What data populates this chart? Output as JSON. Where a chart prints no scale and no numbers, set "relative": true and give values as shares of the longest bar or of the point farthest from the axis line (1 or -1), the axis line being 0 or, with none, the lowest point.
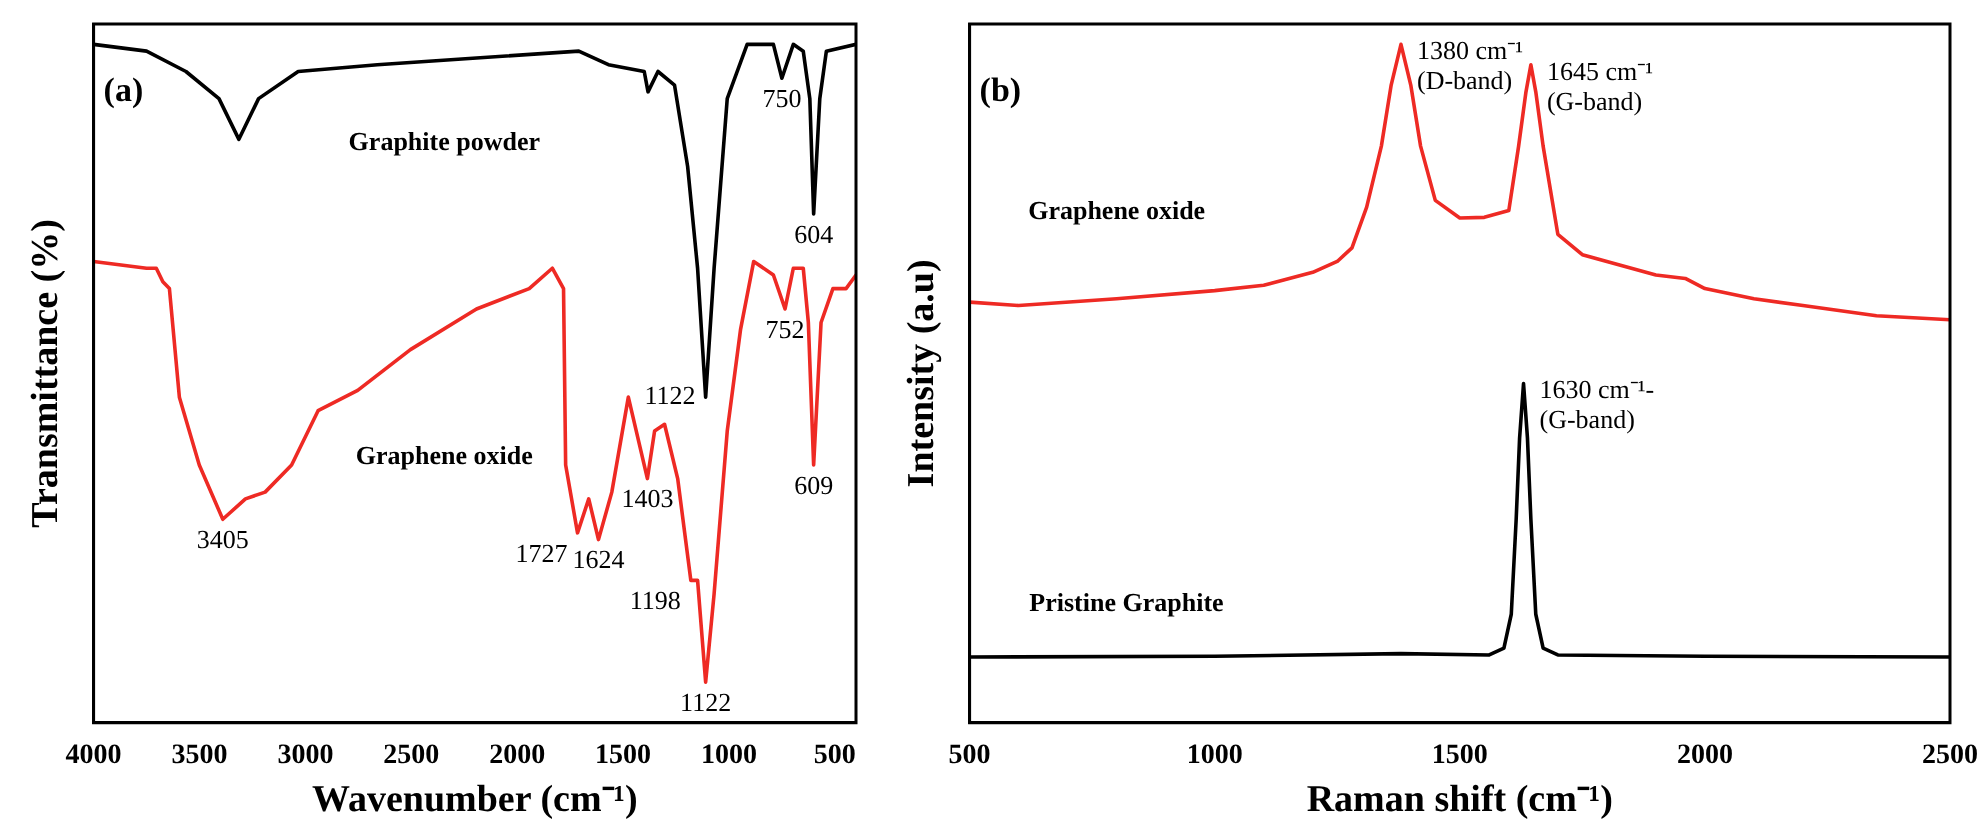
{
  "chart_data": [
    {
      "type": "line",
      "relative": true,
      "xlabel": "Wavenumber (cm⁻¹)",
      "ylabel": "Transmittance (%)",
      "xlim": [
        4000,
        400
      ],
      "xticks": [
        4000,
        3500,
        3000,
        2500,
        2000,
        1500,
        1000,
        500
      ],
      "grid": false,
      "legend": false,
      "marker": "none",
      "line_style": "solid",
      "annotations": [
        "(a)",
        {
          "text": "750",
          "x": 750,
          "y": 0.95
        },
        {
          "text": "604",
          "x": 600,
          "y": 0.75
        },
        {
          "text": "1122",
          "x": 1110,
          "y": 0.48
        },
        {
          "text": "3405",
          "x": 3390,
          "y": 0.3
        },
        {
          "text": "1727",
          "x": 1715,
          "y": 0.28
        },
        {
          "text": "1624",
          "x": 1616,
          "y": 0.27
        },
        {
          "text": "1403",
          "x": 1385,
          "y": 0.36
        },
        {
          "text": "1198",
          "x": 1180,
          "y": 0.21
        },
        {
          "text": "1122",
          "x": 1110,
          "y": 0.06
        },
        {
          "text": "752",
          "x": 735,
          "y": 0.61
        },
        {
          "text": "609",
          "x": 600,
          "y": 0.38
        }
      ],
      "series": [
        {
          "name": "Graphite powder",
          "color": "#000000",
          "x": [
            4000,
            3750,
            3564,
            3408,
            3314,
            3221,
            3034,
            2660,
            2192,
            1709,
            1569,
            1400,
            1382,
            1335,
            1257,
            1195,
            1148,
            1110,
            1070,
            1008,
            914,
            790,
            750,
            696,
            649,
            618,
            600,
            571,
            540,
            400
          ],
          "values": [
            1.0,
            0.99,
            0.96,
            0.92,
            0.86,
            0.92,
            0.96,
            0.97,
            0.98,
            0.99,
            0.97,
            0.96,
            0.93,
            0.96,
            0.94,
            0.82,
            0.67,
            0.48,
            0.67,
            0.92,
            1.0,
            1.0,
            0.95,
            1.0,
            0.99,
            0.92,
            0.75,
            0.92,
            0.99,
            1.0
          ]
        },
        {
          "name": "Graphene oxide",
          "color": "#ee2a24",
          "x": [
            4000,
            3750,
            3704,
            3673,
            3642,
            3595,
            3501,
            3390,
            3283,
            3190,
            3065,
            2940,
            2753,
            2504,
            2192,
            1943,
            1834,
            1781,
            1771,
            1715,
            1662,
            1616,
            1553,
            1475,
            1385,
            1351,
            1304,
            1242,
            1180,
            1148,
            1110,
            1070,
            1008,
            945,
            883,
            790,
            735,
            696,
            649,
            625,
            600,
            565,
            509,
            447,
            400
          ],
          "values": [
            0.68,
            0.67,
            0.67,
            0.65,
            0.64,
            0.48,
            0.38,
            0.3,
            0.33,
            0.34,
            0.38,
            0.46,
            0.49,
            0.55,
            0.61,
            0.64,
            0.67,
            0.64,
            0.38,
            0.28,
            0.33,
            0.27,
            0.34,
            0.48,
            0.36,
            0.43,
            0.44,
            0.36,
            0.21,
            0.21,
            0.06,
            0.19,
            0.43,
            0.58,
            0.68,
            0.66,
            0.61,
            0.67,
            0.67,
            0.59,
            0.38,
            0.59,
            0.64,
            0.64,
            0.66
          ]
        }
      ]
    },
    {
      "type": "line",
      "relative": true,
      "xlabel": "Raman shift (cm⁻¹)",
      "ylabel": "Intensity (a.u)",
      "xlim": [
        500,
        2500
      ],
      "xticks": [
        500,
        1000,
        1500,
        2000,
        2500
      ],
      "grid": false,
      "legend": false,
      "marker": "none",
      "line_style": "solid",
      "annotations": [
        "(b)",
        {
          "text": "1380 cm⁻¹\n(D-band)",
          "x": 1380,
          "y": 1.0
        },
        {
          "text": "1645 cm⁻¹\n(G-band)",
          "x": 1645,
          "y": 0.97
        },
        {
          "text": "1630 cm⁻¹-\n(G-band)",
          "x": 1630,
          "y": 0.5
        }
      ],
      "series": [
        {
          "name": "Graphene oxide",
          "color": "#ee2a24",
          "x": [
            500,
            600,
            800,
            1000,
            1100,
            1200,
            1250,
            1280,
            1310,
            1340,
            1360,
            1380,
            1400,
            1420,
            1450,
            1500,
            1550,
            1600,
            1620,
            1635,
            1645,
            1655,
            1670,
            1700,
            1750,
            1800,
            1900,
            1960,
            2000,
            2100,
            2200,
            2350,
            2500
          ],
          "values": [
            0.62,
            0.615,
            0.625,
            0.637,
            0.645,
            0.664,
            0.68,
            0.7,
            0.76,
            0.85,
            0.94,
            1.0,
            0.94,
            0.85,
            0.77,
            0.744,
            0.745,
            0.755,
            0.85,
            0.93,
            0.97,
            0.93,
            0.85,
            0.72,
            0.69,
            0.68,
            0.66,
            0.655,
            0.64,
            0.625,
            0.615,
            0.6,
            0.594
          ]
        },
        {
          "name": "Pristine Graphite",
          "color": "#000000",
          "x": [
            500,
            1000,
            1380,
            1560,
            1590,
            1605,
            1615,
            1622,
            1630,
            1638,
            1645,
            1655,
            1670,
            1700,
            2000,
            2500
          ],
          "values": [
            0.097,
            0.098,
            0.102,
            0.1,
            0.11,
            0.16,
            0.3,
            0.42,
            0.5,
            0.42,
            0.3,
            0.16,
            0.11,
            0.1,
            0.098,
            0.097
          ]
        }
      ]
    }
  ]
}
